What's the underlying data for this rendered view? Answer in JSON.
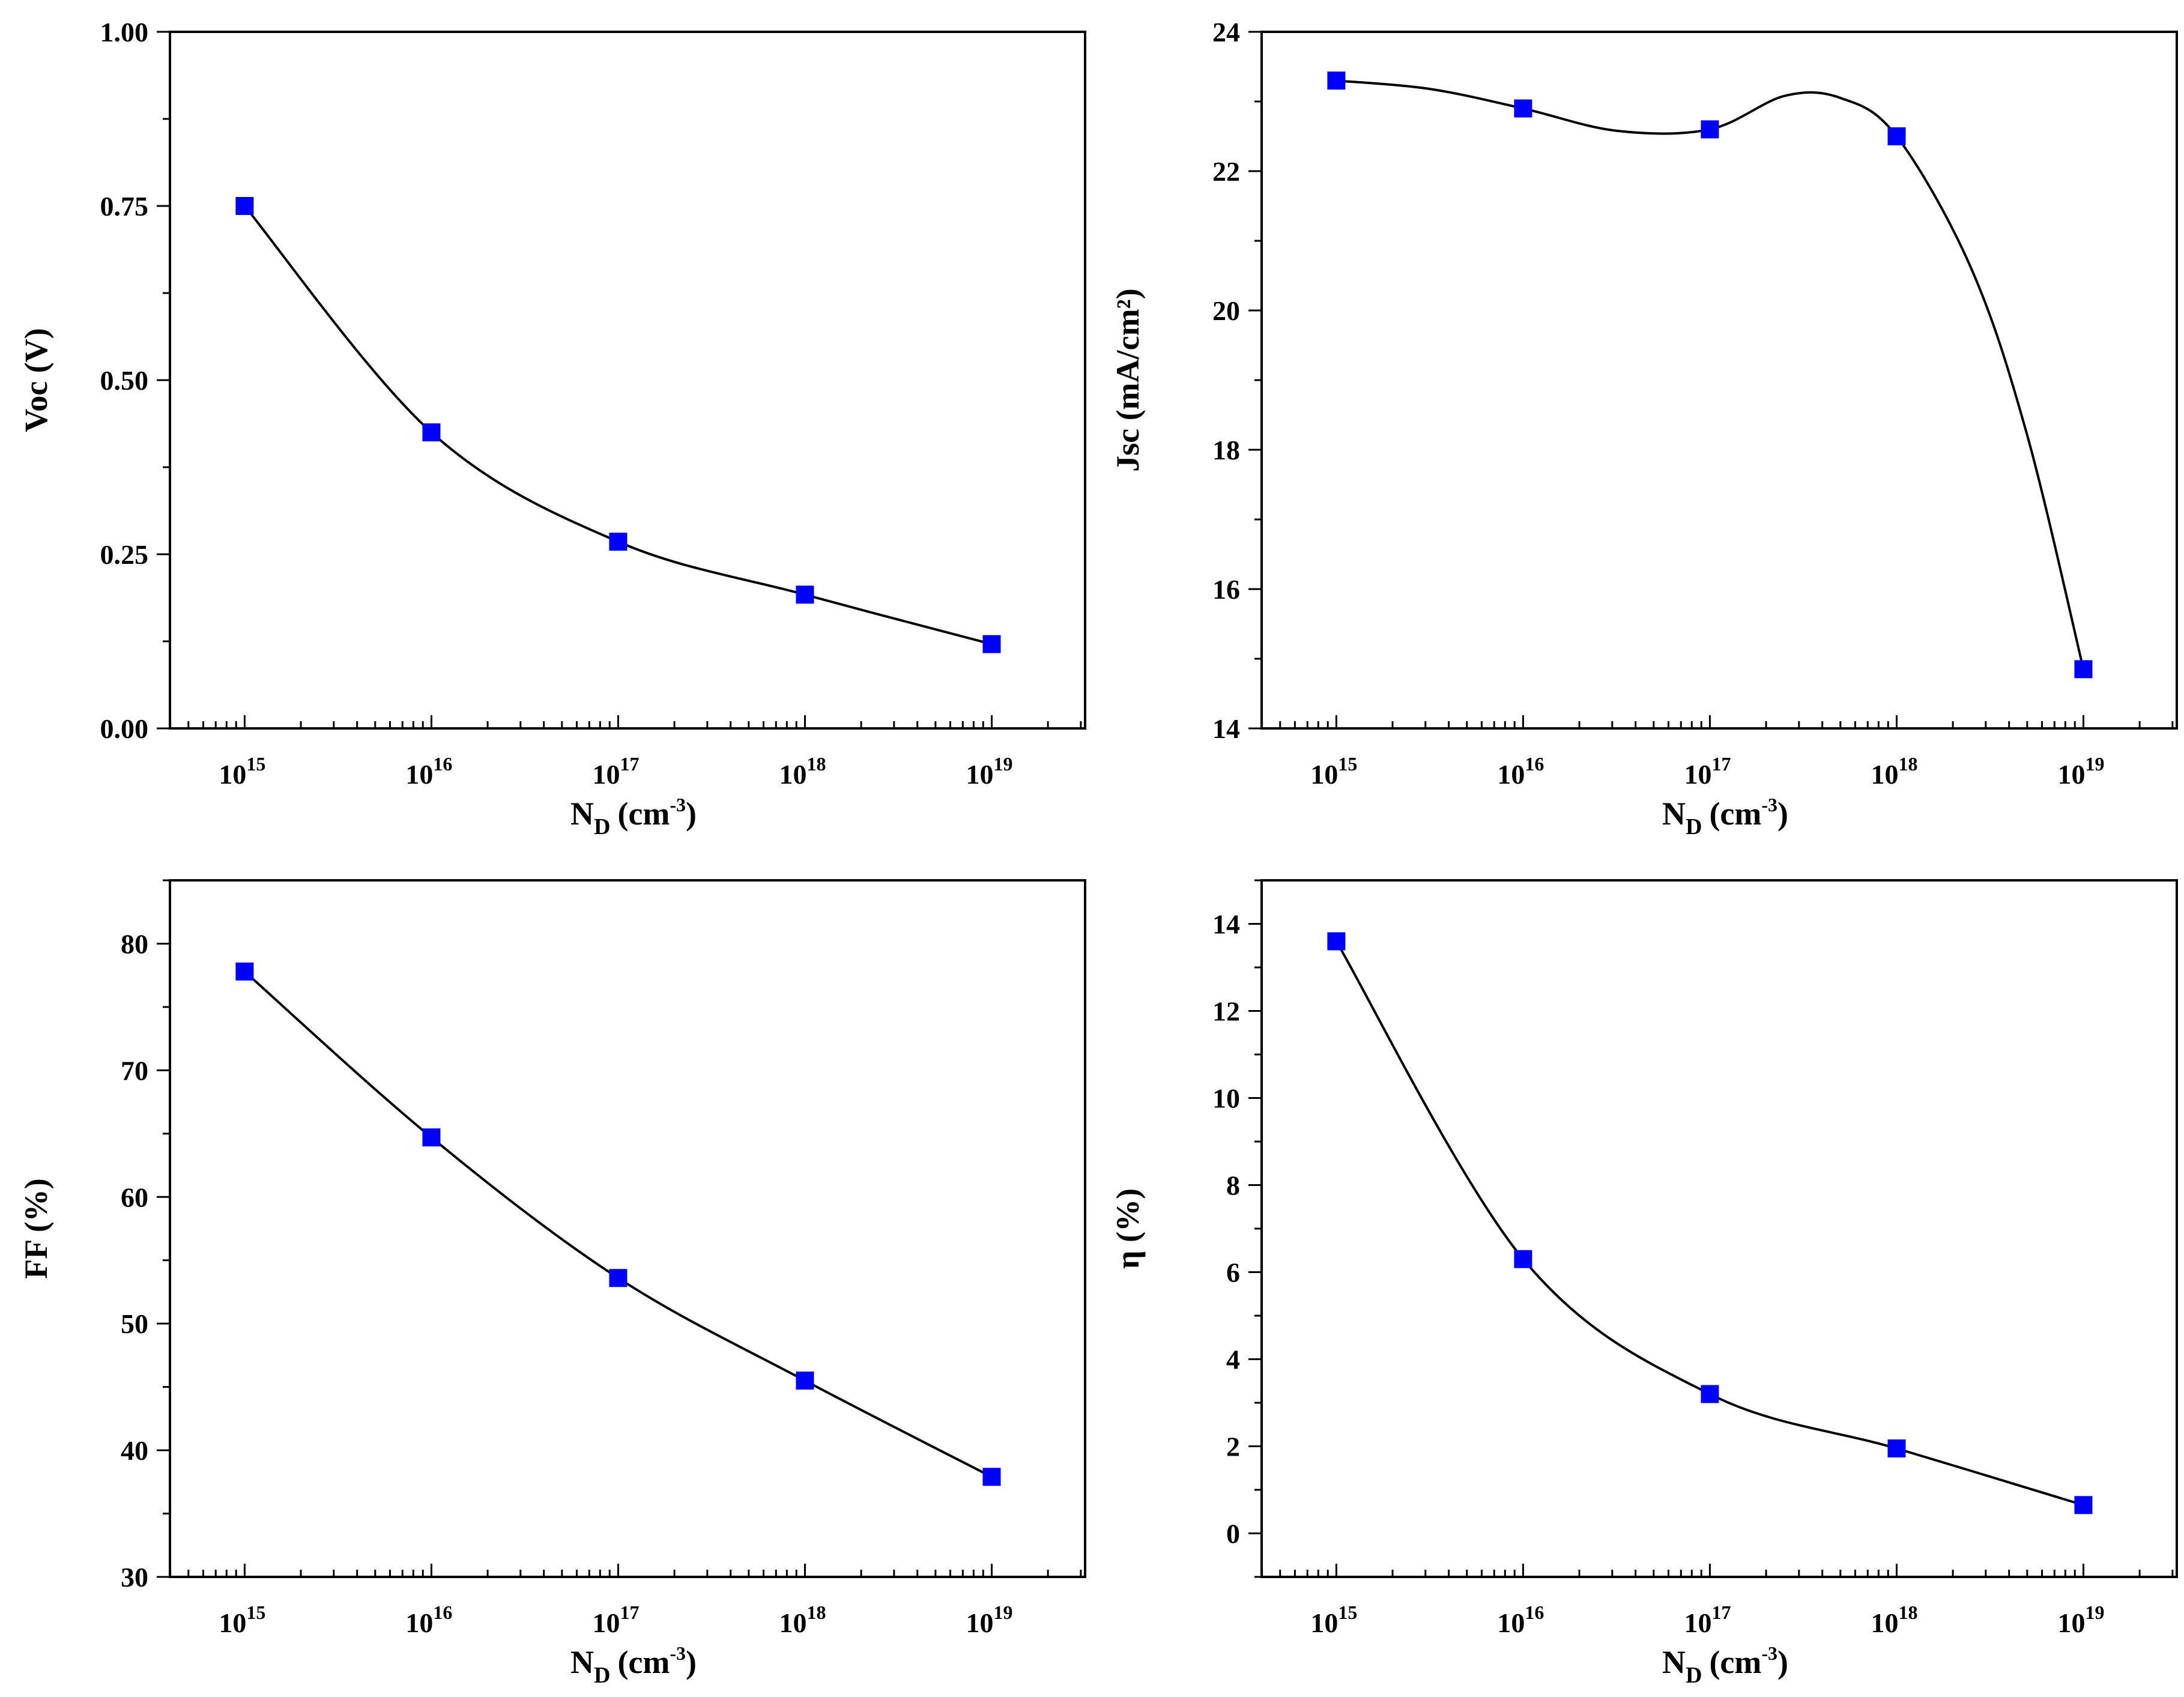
{
  "chart_data": [
    {
      "id": "voc",
      "type": "line",
      "x_scale": "log",
      "x": [
        1000000000000000.0,
        1e+16,
        1e+17,
        1e+18,
        1e+19
      ],
      "x_tick_base": "10",
      "x_tick_exponents": [
        "15",
        "16",
        "17",
        "18",
        "19"
      ],
      "xlim_exp": [
        14.6,
        19.5
      ],
      "series": [
        {
          "name": "Voc",
          "values": [
            0.75,
            0.425,
            0.268,
            0.192,
            0.121
          ],
          "color": "#0000ff",
          "line_color": "#000000",
          "marker": "square"
        }
      ],
      "ylim": [
        0.0,
        1.0
      ],
      "y_ticks": [
        0.0,
        0.25,
        0.5,
        0.75,
        1.0
      ],
      "y_tick_labels": [
        "0.00",
        "0.25",
        "0.50",
        "0.75",
        "1.00"
      ],
      "ylabel": "Voc (V)",
      "xlabel_main": "N",
      "xlabel_sub": "D",
      "xlabel_unit": "(cm",
      "xlabel_sup": "-3",
      "xlabel_close": ")"
    },
    {
      "id": "jsc",
      "type": "line",
      "x_scale": "log",
      "x": [
        1000000000000000.0,
        1e+16,
        1e+17,
        1e+18,
        1e+19
      ],
      "x_tick_base": "10",
      "x_tick_exponents": [
        "15",
        "16",
        "17",
        "18",
        "19"
      ],
      "xlim_exp": [
        14.6,
        19.5
      ],
      "series": [
        {
          "name": "Jsc",
          "values": [
            23.3,
            22.9,
            22.6,
            22.5,
            14.85
          ],
          "color": "#0000ff",
          "line_color": "#000000",
          "marker": "square"
        }
      ],
      "curve_points": [
        [
          15,
          23.3
        ],
        [
          15.5,
          23.18
        ],
        [
          16,
          22.9
        ],
        [
          16.5,
          22.58
        ],
        [
          17,
          22.6
        ],
        [
          17.4,
          23.08
        ],
        [
          17.7,
          23.05
        ],
        [
          18,
          22.5
        ],
        [
          18.4,
          20.6
        ],
        [
          18.7,
          18.2
        ],
        [
          19,
          14.85
        ]
      ],
      "ylim": [
        14,
        24
      ],
      "y_ticks": [
        14,
        16,
        18,
        20,
        22,
        24
      ],
      "y_tick_labels": [
        "14",
        "16",
        "18",
        "20",
        "22",
        "24"
      ],
      "ylabel": "Jsc (mA/cm²)",
      "xlabel_main": "N",
      "xlabel_sub": "D",
      "xlabel_unit": "(cm",
      "xlabel_sup": "-3",
      "xlabel_close": ")"
    },
    {
      "id": "ff",
      "type": "line",
      "x_scale": "log",
      "x": [
        1000000000000000.0,
        1e+16,
        1e+17,
        1e+18,
        1e+19
      ],
      "x_tick_base": "10",
      "x_tick_exponents": [
        "15",
        "16",
        "17",
        "18",
        "19"
      ],
      "xlim_exp": [
        14.6,
        19.5
      ],
      "series": [
        {
          "name": "FF",
          "values": [
            77.8,
            64.7,
            53.6,
            45.5,
            37.9
          ],
          "color": "#0000ff",
          "line_color": "#000000",
          "marker": "square"
        }
      ],
      "ylim": [
        30,
        85
      ],
      "y_ticks": [
        30,
        40,
        50,
        60,
        70,
        80
      ],
      "y_tick_labels": [
        "30",
        "40",
        "50",
        "60",
        "70",
        "80"
      ],
      "ylabel": "FF (%)",
      "xlabel_main": "N",
      "xlabel_sub": "D",
      "xlabel_unit": "(cm",
      "xlabel_sup": "-3",
      "xlabel_close": ")"
    },
    {
      "id": "eta",
      "type": "line",
      "x_scale": "log",
      "x": [
        1000000000000000.0,
        1e+16,
        1e+17,
        1e+18,
        1e+19
      ],
      "x_tick_base": "10",
      "x_tick_exponents": [
        "15",
        "16",
        "17",
        "18",
        "19"
      ],
      "xlim_exp": [
        14.6,
        19.5
      ],
      "series": [
        {
          "name": "η",
          "values": [
            13.6,
            6.3,
            3.2,
            1.95,
            0.65
          ],
          "color": "#0000ff",
          "line_color": "#000000",
          "marker": "square"
        }
      ],
      "ylim": [
        -1,
        15
      ],
      "y_ticks": [
        0,
        2,
        4,
        6,
        8,
        10,
        12,
        14
      ],
      "y_tick_labels": [
        "0",
        "2",
        "4",
        "6",
        "8",
        "10",
        "12",
        "14"
      ],
      "ylabel": "η (%)",
      "xlabel_main": "N",
      "xlabel_sub": "D",
      "xlabel_unit": "(cm",
      "xlabel_sup": "-3",
      "xlabel_close": ")"
    }
  ]
}
